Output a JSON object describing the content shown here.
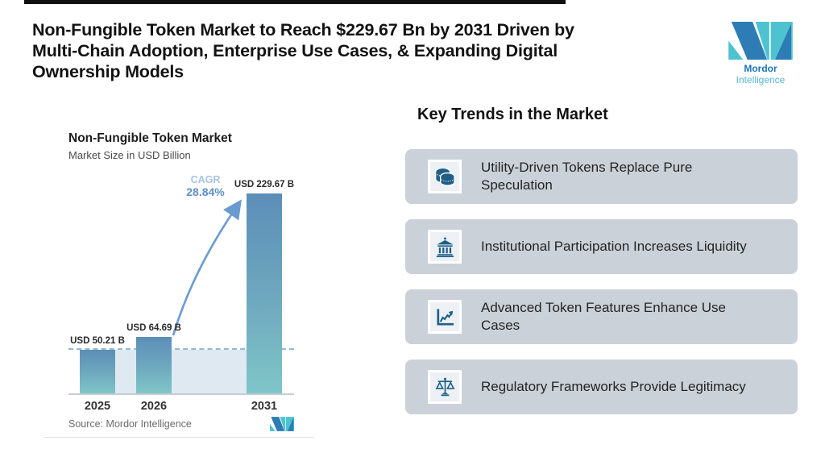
{
  "header": {
    "title_lines": [
      "Non-Fungible Token Market to Reach $229.67 Bn by 2031 Driven by",
      "Multi-Chain Adoption, Enterprise Use Cases, & Expanding Digital",
      "Ownership Models"
    ]
  },
  "logo": {
    "brand_bold": "Mordor",
    "brand_light": "Intelligence"
  },
  "chart": {
    "title": "Non-Fungible Token Market",
    "subtitle": "Market Size in USD Billion",
    "cagr_label": "CAGR",
    "cagr_value": "28.84%",
    "source": "Source: Mordor Intelligence"
  },
  "chart_data": {
    "type": "bar",
    "title": "Non-Fungible Token Market",
    "subtitle": "Market Size in USD Billion",
    "unit": "USD Billion",
    "categories": [
      "2025",
      "2026",
      "2031"
    ],
    "values": [
      50.21,
      64.69,
      229.67
    ],
    "bar_labels": [
      "USD 50.21 B",
      "USD 64.69 B",
      "USD 229.67 B"
    ],
    "cagr_percent": 28.84,
    "ylim": [
      0,
      250
    ],
    "grid": false,
    "annotations": [
      "dashed reference line at 2025 level extended across chart",
      "arrow from 2026 bar to 2031 bar with CAGR 28.84%"
    ],
    "source": "Source: Mordor Intelligence"
  },
  "trends": {
    "heading": "Key Trends in the Market",
    "items": [
      {
        "icon": "coins-icon",
        "label": "Utility-Driven Tokens Replace Pure Speculation",
        "lines": [
          "Utility-Driven Tokens Replace Pure",
          "Speculation"
        ]
      },
      {
        "icon": "bank-icon",
        "label": "Institutional Participation Increases Liquidity",
        "lines": [
          "Institutional Participation Increases Liquidity"
        ]
      },
      {
        "icon": "line-chart-icon",
        "label": "Advanced Token Features Enhance Use Cases",
        "lines": [
          "Advanced Token Features Enhance Use",
          "Cases"
        ]
      },
      {
        "icon": "scales-icon",
        "label": "Regulatory Frameworks Provide Legitimacy",
        "lines": [
          "Regulatory Frameworks Provide Legitimacy"
        ]
      }
    ]
  },
  "colors": {
    "brand_dark_blue": "#1B75BC",
    "brand_teal": "#4EC3CF",
    "bar_gradient_top": "#5C8EB8",
    "bar_gradient_bottom": "#7FC6C8",
    "reference_band": "#DEE9F2",
    "dashed_line": "#8FB8D8",
    "arrow_blue": "#6A9BD0",
    "card_background": "#CBD1D8",
    "icon_blue": "#1F5F86"
  }
}
